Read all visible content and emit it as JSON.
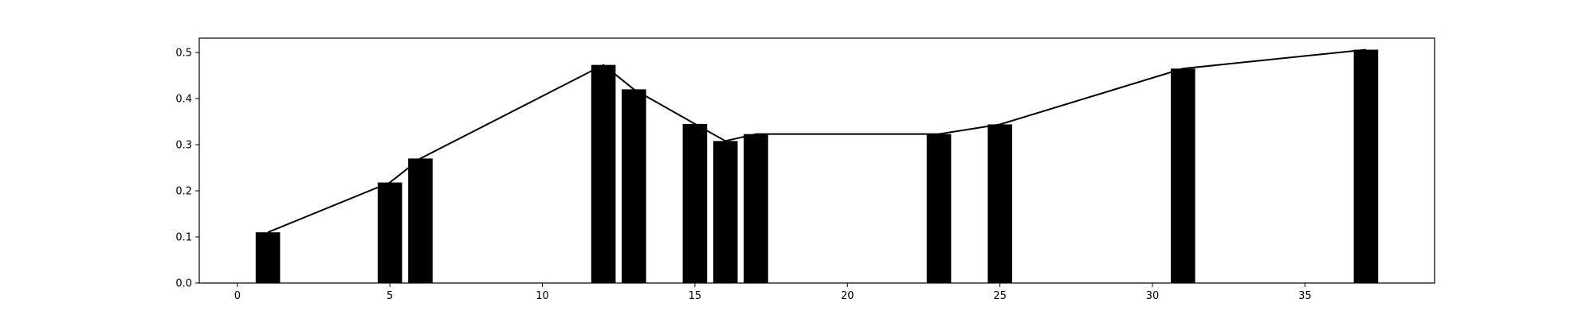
{
  "chart_data": {
    "type": "bar",
    "x": [
      1,
      5,
      6,
      12,
      13,
      15,
      16,
      17,
      23,
      25,
      31,
      37
    ],
    "values": [
      0.11,
      0.218,
      0.27,
      0.473,
      0.42,
      0.345,
      0.308,
      0.323,
      0.323,
      0.344,
      0.465,
      0.506
    ],
    "line_overlay": true,
    "title": "",
    "xlabel": "",
    "ylabel": "",
    "xlim": [
      -1.25,
      39.25
    ],
    "ylim": [
      0,
      0.531
    ],
    "x_ticks": [
      0,
      5,
      10,
      15,
      20,
      25,
      30,
      35
    ],
    "y_ticks": [
      0.0,
      0.1,
      0.2,
      0.3,
      0.4,
      0.5
    ],
    "x_tick_labels": [
      "0",
      "5",
      "10",
      "15",
      "20",
      "25",
      "30",
      "35"
    ],
    "y_tick_labels": [
      "0.0",
      "0.1",
      "0.2",
      "0.3",
      "0.4",
      "0.5"
    ],
    "bar_width": 0.8,
    "grid": false,
    "bar_color": "#000000",
    "line_color": "#000000"
  }
}
